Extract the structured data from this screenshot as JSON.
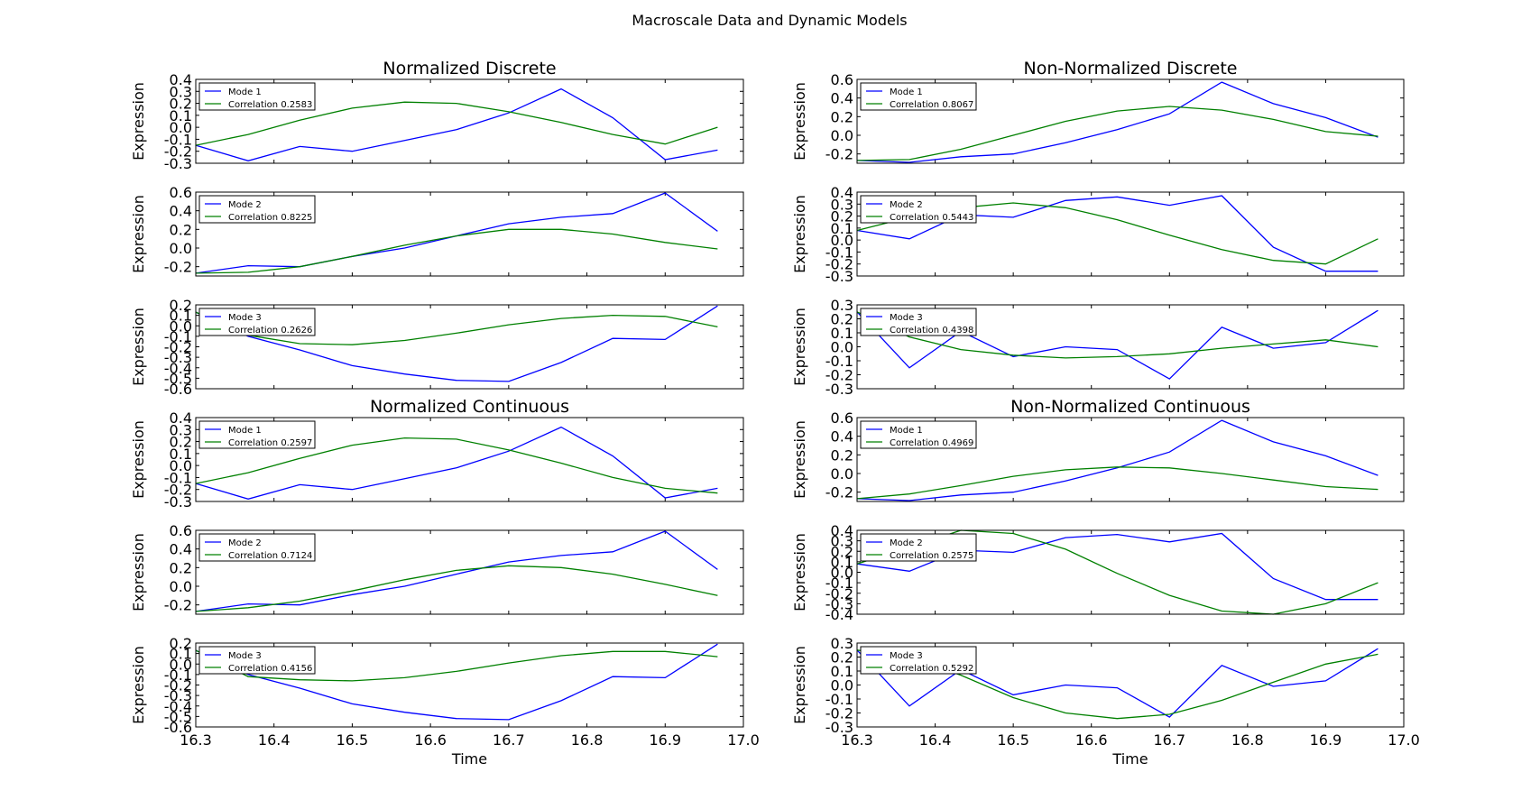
{
  "figure": {
    "title": "Macroscale Data and Dynamic Models",
    "x_tick_labels": [
      "16.3",
      "16.4",
      "16.5",
      "16.6",
      "16.7",
      "16.8",
      "16.9",
      "17.0"
    ]
  },
  "colors": {
    "model": "#0000ff",
    "data": "#008000"
  },
  "chart_data": [
    {
      "type": "line",
      "panel": "left-1",
      "title": "Normalized Discrete",
      "ylabel": "Expression",
      "xlabel": "",
      "xlim": [
        16.3,
        17.0
      ],
      "ylim": [
        -0.3,
        0.4
      ],
      "yticks": [
        "-0.3",
        "-0.2",
        "-0.1",
        "0.0",
        "0.1",
        "0.2",
        "0.3",
        "0.4"
      ],
      "x": [
        16.3,
        16.367,
        16.433,
        16.5,
        16.567,
        16.633,
        16.7,
        16.767,
        16.833,
        16.9,
        16.967
      ],
      "series": [
        {
          "name": "Mode 1",
          "color": "#0000ff",
          "values": [
            -0.15,
            -0.28,
            -0.16,
            -0.2,
            -0.11,
            -0.02,
            0.12,
            0.32,
            0.08,
            -0.27,
            -0.19
          ]
        },
        {
          "name": "Correlation 0.2583",
          "color": "#008000",
          "values": [
            -0.15,
            -0.06,
            0.06,
            0.16,
            0.21,
            0.2,
            0.13,
            0.04,
            -0.06,
            -0.14,
            0.0
          ]
        }
      ],
      "legend_loc": "upper left"
    },
    {
      "type": "line",
      "panel": "left-2",
      "title": "",
      "ylabel": "Expression",
      "xlabel": "",
      "xlim": [
        16.3,
        17.0
      ],
      "ylim": [
        -0.3,
        0.6
      ],
      "yticks": [
        "-0.2",
        "0.0",
        "0.2",
        "0.4",
        "0.6"
      ],
      "x": [
        16.3,
        16.367,
        16.433,
        16.5,
        16.567,
        16.633,
        16.7,
        16.767,
        16.833,
        16.9,
        16.967
      ],
      "series": [
        {
          "name": "Mode 2",
          "color": "#0000ff",
          "values": [
            -0.27,
            -0.19,
            -0.2,
            -0.09,
            0.0,
            0.13,
            0.26,
            0.33,
            0.37,
            0.59,
            0.18
          ]
        },
        {
          "name": "Correlation 0.8225",
          "color": "#008000",
          "values": [
            -0.27,
            -0.26,
            -0.2,
            -0.09,
            0.03,
            0.13,
            0.2,
            0.2,
            0.15,
            0.06,
            -0.01
          ]
        }
      ],
      "legend_loc": "upper left"
    },
    {
      "type": "line",
      "panel": "left-3",
      "title": "",
      "ylabel": "Expression",
      "xlabel": "",
      "xlim": [
        16.3,
        17.0
      ],
      "ylim": [
        -0.6,
        0.2
      ],
      "yticks": [
        "-0.6",
        "-0.5",
        "-0.4",
        "-0.3",
        "-0.2",
        "-0.1",
        "0.0",
        "0.1",
        "0.2"
      ],
      "x": [
        16.3,
        16.367,
        16.433,
        16.5,
        16.567,
        16.633,
        16.7,
        16.767,
        16.833,
        16.9,
        16.967
      ],
      "series": [
        {
          "name": "Mode 3",
          "color": "#0000ff",
          "values": [
            0.13,
            -0.1,
            -0.23,
            -0.38,
            -0.46,
            -0.52,
            -0.53,
            -0.35,
            -0.12,
            -0.13,
            0.19
          ]
        },
        {
          "name": "Correlation 0.2626",
          "color": "#008000",
          "values": [
            0.13,
            -0.09,
            -0.17,
            -0.18,
            -0.14,
            -0.07,
            0.01,
            0.07,
            0.1,
            0.09,
            -0.01
          ]
        }
      ],
      "legend_loc": "upper left"
    },
    {
      "type": "line",
      "panel": "left-4",
      "title": "Normalized Continuous",
      "ylabel": "Expression",
      "xlabel": "",
      "xlim": [
        16.3,
        17.0
      ],
      "ylim": [
        -0.3,
        0.4
      ],
      "yticks": [
        "-0.3",
        "-0.2",
        "-0.1",
        "0.0",
        "0.1",
        "0.2",
        "0.3",
        "0.4"
      ],
      "x": [
        16.3,
        16.367,
        16.433,
        16.5,
        16.567,
        16.633,
        16.7,
        16.767,
        16.833,
        16.9,
        16.967
      ],
      "series": [
        {
          "name": "Mode 1",
          "color": "#0000ff",
          "values": [
            -0.15,
            -0.28,
            -0.16,
            -0.2,
            -0.11,
            -0.02,
            0.12,
            0.32,
            0.08,
            -0.27,
            -0.19
          ]
        },
        {
          "name": "Correlation 0.2597",
          "color": "#008000",
          "values": [
            -0.15,
            -0.06,
            0.06,
            0.17,
            0.23,
            0.22,
            0.13,
            0.02,
            -0.1,
            -0.19,
            -0.23
          ]
        }
      ],
      "legend_loc": "upper left"
    },
    {
      "type": "line",
      "panel": "left-5",
      "title": "",
      "ylabel": "Expression",
      "xlabel": "",
      "xlim": [
        16.3,
        17.0
      ],
      "ylim": [
        -0.3,
        0.6
      ],
      "yticks": [
        "-0.2",
        "0.0",
        "0.2",
        "0.4",
        "0.6"
      ],
      "x": [
        16.3,
        16.367,
        16.433,
        16.5,
        16.567,
        16.633,
        16.7,
        16.767,
        16.833,
        16.9,
        16.967
      ],
      "series": [
        {
          "name": "Mode 2",
          "color": "#0000ff",
          "values": [
            -0.27,
            -0.19,
            -0.2,
            -0.09,
            0.0,
            0.13,
            0.26,
            0.33,
            0.37,
            0.59,
            0.18
          ]
        },
        {
          "name": "Correlation 0.7124",
          "color": "#008000",
          "values": [
            -0.27,
            -0.23,
            -0.16,
            -0.05,
            0.07,
            0.17,
            0.22,
            0.2,
            0.13,
            0.02,
            -0.1
          ]
        }
      ],
      "legend_loc": "upper left"
    },
    {
      "type": "line",
      "panel": "left-6",
      "title": "",
      "ylabel": "Expression",
      "xlabel": "Time",
      "xlim": [
        16.3,
        17.0
      ],
      "ylim": [
        -0.6,
        0.2
      ],
      "yticks": [
        "-0.6",
        "-0.5",
        "-0.4",
        "-0.3",
        "-0.2",
        "-0.1",
        "0.0",
        "0.1",
        "0.2"
      ],
      "x": [
        16.3,
        16.367,
        16.433,
        16.5,
        16.567,
        16.633,
        16.7,
        16.767,
        16.833,
        16.9,
        16.967
      ],
      "series": [
        {
          "name": "Mode 3",
          "color": "#0000ff",
          "values": [
            0.13,
            -0.1,
            -0.23,
            -0.38,
            -0.46,
            -0.52,
            -0.53,
            -0.35,
            -0.12,
            -0.13,
            0.19
          ]
        },
        {
          "name": "Correlation 0.4156",
          "color": "#008000",
          "values": [
            0.13,
            -0.12,
            -0.15,
            -0.16,
            -0.13,
            -0.07,
            0.01,
            0.08,
            0.12,
            0.12,
            0.07
          ]
        }
      ],
      "legend_loc": "upper left"
    },
    {
      "type": "line",
      "panel": "right-1",
      "title": "Non-Normalized Discrete",
      "ylabel": "Expression",
      "xlabel": "",
      "xlim": [
        16.3,
        17.0
      ],
      "ylim": [
        -0.3,
        0.6
      ],
      "yticks": [
        "-0.2",
        "0.0",
        "0.2",
        "0.4",
        "0.6"
      ],
      "x": [
        16.3,
        16.367,
        16.433,
        16.5,
        16.567,
        16.633,
        16.7,
        16.767,
        16.833,
        16.9,
        16.967
      ],
      "series": [
        {
          "name": "Mode 1",
          "color": "#0000ff",
          "values": [
            -0.27,
            -0.29,
            -0.23,
            -0.2,
            -0.08,
            0.06,
            0.23,
            0.57,
            0.34,
            0.19,
            -0.02
          ]
        },
        {
          "name": "Correlation 0.8067",
          "color": "#008000",
          "values": [
            -0.27,
            -0.26,
            -0.15,
            0.0,
            0.15,
            0.26,
            0.31,
            0.27,
            0.17,
            0.04,
            -0.01
          ]
        }
      ],
      "legend_loc": "upper left"
    },
    {
      "type": "line",
      "panel": "right-2",
      "title": "",
      "ylabel": "Expression",
      "xlabel": "",
      "xlim": [
        16.3,
        17.0
      ],
      "ylim": [
        -0.3,
        0.4
      ],
      "yticks": [
        "-0.3",
        "-0.2",
        "-0.1",
        "0.0",
        "0.1",
        "0.2",
        "0.3",
        "0.4"
      ],
      "x": [
        16.3,
        16.367,
        16.433,
        16.5,
        16.567,
        16.633,
        16.7,
        16.767,
        16.833,
        16.9,
        16.967
      ],
      "series": [
        {
          "name": "Mode 2",
          "color": "#0000ff",
          "values": [
            0.08,
            0.01,
            0.21,
            0.19,
            0.33,
            0.36,
            0.29,
            0.37,
            -0.06,
            -0.26,
            -0.26
          ]
        },
        {
          "name": "Correlation 0.5443",
          "color": "#008000",
          "values": [
            0.08,
            0.19,
            0.27,
            0.31,
            0.27,
            0.17,
            0.04,
            -0.08,
            -0.17,
            -0.2,
            0.01
          ]
        }
      ],
      "legend_loc": "upper left"
    },
    {
      "type": "line",
      "panel": "right-3",
      "title": "",
      "ylabel": "Expression",
      "xlabel": "",
      "xlim": [
        16.3,
        17.0
      ],
      "ylim": [
        -0.3,
        0.3
      ],
      "yticks": [
        "-0.3",
        "-0.2",
        "-0.1",
        "0.0",
        "0.1",
        "0.2",
        "0.3"
      ],
      "x": [
        16.3,
        16.367,
        16.433,
        16.5,
        16.567,
        16.633,
        16.7,
        16.767,
        16.833,
        16.9,
        16.967
      ],
      "series": [
        {
          "name": "Mode 3",
          "color": "#0000ff",
          "values": [
            0.25,
            -0.15,
            0.11,
            -0.07,
            0.0,
            -0.02,
            -0.23,
            0.14,
            -0.01,
            0.03,
            0.26
          ]
        },
        {
          "name": "Correlation 0.4398",
          "color": "#008000",
          "values": [
            0.25,
            0.07,
            -0.02,
            -0.06,
            -0.08,
            -0.07,
            -0.05,
            -0.01,
            0.02,
            0.05,
            0.0
          ]
        }
      ],
      "legend_loc": "upper left"
    },
    {
      "type": "line",
      "panel": "right-4",
      "title": "Non-Normalized Continuous",
      "ylabel": "Expression",
      "xlabel": "",
      "xlim": [
        16.3,
        17.0
      ],
      "ylim": [
        -0.3,
        0.6
      ],
      "yticks": [
        "-0.2",
        "0.0",
        "0.2",
        "0.4",
        "0.6"
      ],
      "x": [
        16.3,
        16.367,
        16.433,
        16.5,
        16.567,
        16.633,
        16.7,
        16.767,
        16.833,
        16.9,
        16.967
      ],
      "series": [
        {
          "name": "Mode 1",
          "color": "#0000ff",
          "values": [
            -0.27,
            -0.29,
            -0.23,
            -0.2,
            -0.08,
            0.06,
            0.23,
            0.57,
            0.34,
            0.19,
            -0.02
          ]
        },
        {
          "name": "Correlation 0.4969",
          "color": "#008000",
          "values": [
            -0.27,
            -0.22,
            -0.13,
            -0.03,
            0.04,
            0.07,
            0.06,
            0.0,
            -0.07,
            -0.14,
            -0.17
          ]
        }
      ],
      "legend_loc": "upper left"
    },
    {
      "type": "line",
      "panel": "right-5",
      "title": "",
      "ylabel": "Expression",
      "xlabel": "",
      "xlim": [
        16.3,
        17.0
      ],
      "ylim": [
        -0.4,
        0.4
      ],
      "yticks": [
        "-0.4",
        "-0.3",
        "-0.2",
        "-0.1",
        "0.0",
        "0.1",
        "0.2",
        "0.3",
        "0.4"
      ],
      "x": [
        16.3,
        16.367,
        16.433,
        16.5,
        16.567,
        16.633,
        16.7,
        16.767,
        16.833,
        16.9,
        16.967
      ],
      "series": [
        {
          "name": "Mode 2",
          "color": "#0000ff",
          "values": [
            0.08,
            0.01,
            0.21,
            0.19,
            0.33,
            0.36,
            0.29,
            0.37,
            -0.06,
            -0.26,
            -0.26
          ]
        },
        {
          "name": "Correlation 0.2575",
          "color": "#008000",
          "values": [
            0.08,
            0.24,
            0.4,
            0.37,
            0.22,
            -0.01,
            -0.22,
            -0.37,
            -0.4,
            -0.3,
            -0.1
          ]
        }
      ],
      "legend_loc": "upper left"
    },
    {
      "type": "line",
      "panel": "right-6",
      "title": "",
      "ylabel": "Expression",
      "xlabel": "Time",
      "xlim": [
        16.3,
        17.0
      ],
      "ylim": [
        -0.3,
        0.3
      ],
      "yticks": [
        "-0.3",
        "-0.2",
        "-0.1",
        "0.0",
        "0.1",
        "0.2",
        "0.3"
      ],
      "x": [
        16.3,
        16.367,
        16.433,
        16.5,
        16.567,
        16.633,
        16.7,
        16.767,
        16.833,
        16.9,
        16.967
      ],
      "series": [
        {
          "name": "Mode 3",
          "color": "#0000ff",
          "values": [
            0.25,
            -0.15,
            0.11,
            -0.07,
            0.0,
            -0.02,
            -0.23,
            0.14,
            -0.01,
            0.03,
            0.26
          ]
        },
        {
          "name": "Correlation 0.5292",
          "color": "#008000",
          "values": [
            0.25,
            0.2,
            0.07,
            -0.09,
            -0.2,
            -0.24,
            -0.21,
            -0.11,
            0.02,
            0.15,
            0.22
          ]
        }
      ],
      "legend_loc": "upper left"
    }
  ]
}
